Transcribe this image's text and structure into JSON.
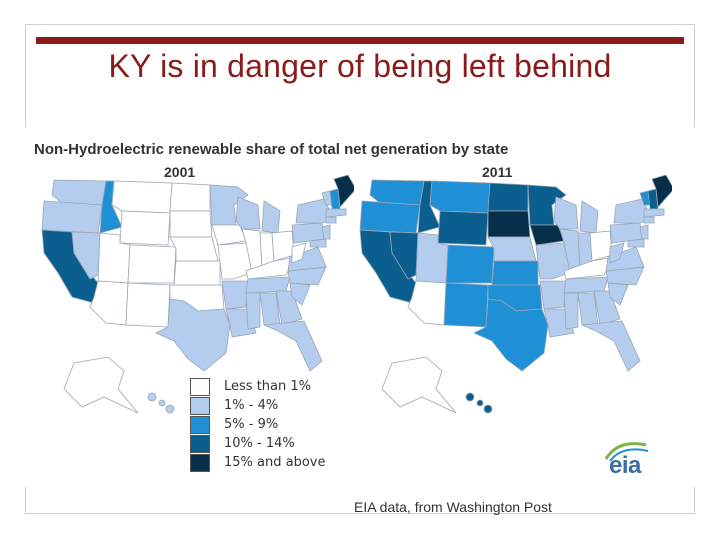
{
  "slide": {
    "title": "KY is in danger of being left behind",
    "source": "EIA data, from Washington Post"
  },
  "figure": {
    "title": "Non-Hydroelectric renewable share of total net generation by state",
    "maps": [
      {
        "year": "2001"
      },
      {
        "year": "2011"
      }
    ],
    "logo_text": "eia"
  },
  "legend": {
    "items": [
      {
        "label": "Less than 1%",
        "color": "#ffffff"
      },
      {
        "label": "1% - 4%",
        "color": "#b4cdee"
      },
      {
        "label": "5% - 9%",
        "color": "#1f8fd6"
      },
      {
        "label": "10% - 14%",
        "color": "#0b5f8f"
      },
      {
        "label": "15% and above",
        "color": "#082f4a"
      }
    ]
  },
  "colors": {
    "title_red": "#8b1a1a",
    "state_border": "#9aa6b5"
  }
}
